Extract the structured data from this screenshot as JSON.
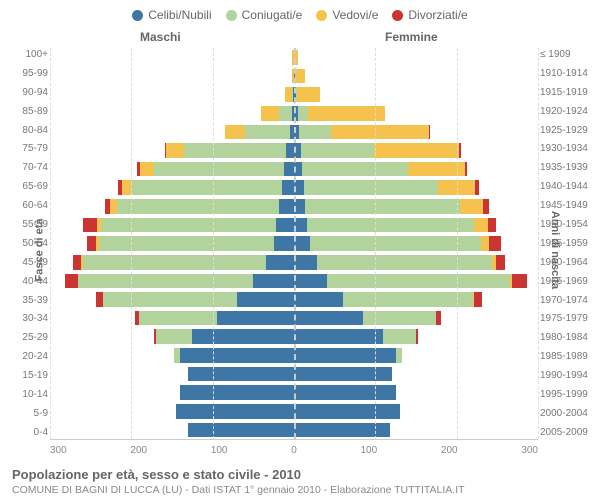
{
  "legend": [
    {
      "label": "Celibi/Nubili",
      "color": "#3e76a6"
    },
    {
      "label": "Coniugati/e",
      "color": "#b2d39b"
    },
    {
      "label": "Vedovi/e",
      "color": "#f4c24d"
    },
    {
      "label": "Divorziati/e",
      "color": "#cc3333"
    }
  ],
  "titles": {
    "male": "Maschi",
    "female": "Femmine"
  },
  "axis_labels": {
    "left": "Fasce di età",
    "right": "Anni di nascita"
  },
  "footer": {
    "title": "Popolazione per età, sesso e stato civile - 2010",
    "subtitle": "COMUNE DI BAGNI DI LUCCA (LU) - Dati ISTAT 1° gennaio 2010 - Elaborazione TUTTITALIA.IT"
  },
  "xaxis": {
    "max": 300,
    "ticks": [
      300,
      200,
      100,
      0,
      100,
      200,
      300
    ]
  },
  "age_brackets": [
    "100+",
    "95-99",
    "90-94",
    "85-89",
    "80-84",
    "75-79",
    "70-74",
    "65-69",
    "60-64",
    "55-59",
    "50-54",
    "45-49",
    "40-44",
    "35-39",
    "30-34",
    "25-29",
    "20-24",
    "15-19",
    "10-14",
    "5-9",
    "0-4"
  ],
  "birth_years": [
    "≤ 1909",
    "1910-1914",
    "1915-1919",
    "1920-1924",
    "1925-1929",
    "1930-1934",
    "1935-1939",
    "1940-1944",
    "1945-1949",
    "1950-1954",
    "1955-1959",
    "1960-1964",
    "1965-1969",
    "1970-1974",
    "1975-1979",
    "1980-1984",
    "1985-1989",
    "1990-1994",
    "1995-1999",
    "2000-2004",
    "2005-2009"
  ],
  "colors": {
    "celibi": "#3e76a6",
    "coniugati": "#b2d39b",
    "vedovi": "#f4c24d",
    "divorziati": "#cc3333",
    "grid": "#dddddd",
    "center": "#cccccc"
  },
  "data": {
    "male": [
      {
        "c": 0,
        "g": 0,
        "v": 2,
        "d": 0
      },
      {
        "c": 0,
        "g": 0,
        "v": 3,
        "d": 0
      },
      {
        "c": 1,
        "g": 2,
        "v": 8,
        "d": 0
      },
      {
        "c": 3,
        "g": 15,
        "v": 22,
        "d": 0
      },
      {
        "c": 5,
        "g": 55,
        "v": 25,
        "d": 0
      },
      {
        "c": 10,
        "g": 125,
        "v": 22,
        "d": 2
      },
      {
        "c": 12,
        "g": 160,
        "v": 18,
        "d": 3
      },
      {
        "c": 15,
        "g": 185,
        "v": 12,
        "d": 5
      },
      {
        "c": 18,
        "g": 200,
        "v": 8,
        "d": 6
      },
      {
        "c": 22,
        "g": 215,
        "v": 5,
        "d": 18
      },
      {
        "c": 25,
        "g": 215,
        "v": 3,
        "d": 12
      },
      {
        "c": 35,
        "g": 225,
        "v": 2,
        "d": 10
      },
      {
        "c": 50,
        "g": 215,
        "v": 1,
        "d": 15
      },
      {
        "c": 70,
        "g": 165,
        "v": 0,
        "d": 8
      },
      {
        "c": 95,
        "g": 95,
        "v": 0,
        "d": 5
      },
      {
        "c": 125,
        "g": 45,
        "v": 0,
        "d": 2
      },
      {
        "c": 140,
        "g": 8,
        "v": 0,
        "d": 0
      },
      {
        "c": 130,
        "g": 0,
        "v": 0,
        "d": 0
      },
      {
        "c": 140,
        "g": 0,
        "v": 0,
        "d": 0
      },
      {
        "c": 145,
        "g": 0,
        "v": 0,
        "d": 0
      },
      {
        "c": 130,
        "g": 0,
        "v": 0,
        "d": 0
      }
    ],
    "female": [
      {
        "c": 0,
        "g": 0,
        "v": 5,
        "d": 0
      },
      {
        "c": 1,
        "g": 0,
        "v": 12,
        "d": 0
      },
      {
        "c": 2,
        "g": 2,
        "v": 28,
        "d": 0
      },
      {
        "c": 5,
        "g": 12,
        "v": 95,
        "d": 0
      },
      {
        "c": 6,
        "g": 40,
        "v": 120,
        "d": 1
      },
      {
        "c": 8,
        "g": 90,
        "v": 105,
        "d": 2
      },
      {
        "c": 10,
        "g": 130,
        "v": 70,
        "d": 3
      },
      {
        "c": 12,
        "g": 165,
        "v": 45,
        "d": 5
      },
      {
        "c": 14,
        "g": 190,
        "v": 28,
        "d": 8
      },
      {
        "c": 16,
        "g": 205,
        "v": 18,
        "d": 10
      },
      {
        "c": 20,
        "g": 210,
        "v": 10,
        "d": 15
      },
      {
        "c": 28,
        "g": 215,
        "v": 5,
        "d": 12
      },
      {
        "c": 40,
        "g": 225,
        "v": 3,
        "d": 18
      },
      {
        "c": 60,
        "g": 160,
        "v": 1,
        "d": 10
      },
      {
        "c": 85,
        "g": 90,
        "v": 0,
        "d": 6
      },
      {
        "c": 110,
        "g": 40,
        "v": 0,
        "d": 3
      },
      {
        "c": 125,
        "g": 8,
        "v": 0,
        "d": 0
      },
      {
        "c": 120,
        "g": 0,
        "v": 0,
        "d": 0
      },
      {
        "c": 125,
        "g": 0,
        "v": 0,
        "d": 0
      },
      {
        "c": 130,
        "g": 0,
        "v": 0,
        "d": 0
      },
      {
        "c": 118,
        "g": 0,
        "v": 0,
        "d": 0
      }
    ]
  }
}
